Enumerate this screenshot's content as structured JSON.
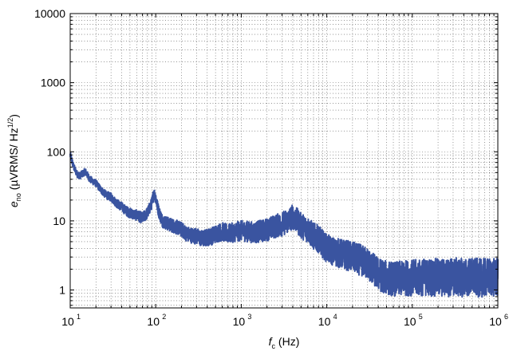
{
  "chart_data": {
    "type": "line",
    "title": "",
    "xlabel": {
      "symbol": "f",
      "subscript": "c",
      "unit": " (Hz)"
    },
    "ylabel": {
      "symbol": "e",
      "subscript": "no",
      "unit_prefix": " (µVRMS/ Hz",
      "unit_exponent": "1/2",
      "unit_suffix": ")"
    },
    "x_scale": "log",
    "y_scale": "log",
    "xlim": [
      10,
      1000000
    ],
    "ylim": [
      0.55,
      10000
    ],
    "grid": true,
    "grid_style": "dotted major and minor",
    "legend": "none",
    "x_ticks": [
      {
        "value": 10,
        "base": "10",
        "exponent": "1"
      },
      {
        "value": 100,
        "base": "10",
        "exponent": "2"
      },
      {
        "value": 1000,
        "base": "10",
        "exponent": "3"
      },
      {
        "value": 10000,
        "base": "10",
        "exponent": "4"
      },
      {
        "value": 100000,
        "base": "10",
        "exponent": "5"
      },
      {
        "value": 1000000,
        "base": "10",
        "exponent": "6"
      }
    ],
    "y_ticks": [
      {
        "value": 1,
        "label": "1"
      },
      {
        "value": 10,
        "label": "10"
      },
      {
        "value": 100,
        "label": "100"
      },
      {
        "value": 1000,
        "label": "1000"
      },
      {
        "value": 10000,
        "label": "10000"
      }
    ],
    "series": [
      {
        "color": "#3a54a0",
        "x": [
          10,
          11,
          12,
          13,
          15,
          17,
          20,
          23,
          26,
          30,
          35,
          40,
          45,
          50,
          60,
          70,
          80,
          90,
          95,
          100,
          105,
          110,
          120,
          140,
          160,
          180,
          200,
          230,
          260,
          300,
          350,
          400,
          450,
          500,
          600,
          700,
          800,
          900,
          1000,
          1200,
          1400,
          1600,
          1800,
          2000,
          2300,
          2600,
          3000,
          3500,
          4000,
          4500,
          5000,
          6000,
          7000,
          8000,
          9000,
          10000,
          12000,
          14000,
          17000,
          20000,
          25000,
          30000,
          35000,
          40000,
          50000,
          60000,
          70000,
          80000,
          100000,
          120000,
          150000,
          200000,
          250000,
          300000,
          400000,
          500000,
          600000,
          700000,
          800000,
          900000,
          1000000
        ],
        "y": [
          90,
          60,
          48,
          45,
          52,
          40,
          35,
          28,
          24,
          22,
          18,
          16,
          14,
          13,
          12,
          11,
          13,
          18,
          25,
          22,
          16,
          13,
          10,
          9,
          8.5,
          8,
          7.5,
          6.5,
          6.2,
          6.0,
          5.5,
          5.8,
          6.0,
          6.5,
          7.0,
          6.5,
          6.8,
          7.0,
          7.2,
          7.0,
          6.8,
          7.0,
          7.2,
          7.5,
          8.0,
          8.5,
          9.0,
          10.0,
          11.5,
          10.0,
          8.5,
          7.5,
          6.0,
          5.5,
          4.6,
          4.0,
          3.6,
          3.4,
          3.2,
          3.0,
          2.7,
          2.4,
          2.0,
          1.7,
          1.5,
          1.45,
          1.45,
          1.5,
          1.5,
          1.5,
          1.55,
          1.5,
          1.5,
          1.55,
          1.5,
          1.55,
          1.5,
          1.5,
          1.55,
          1.5,
          1.5
        ]
      }
    ]
  }
}
